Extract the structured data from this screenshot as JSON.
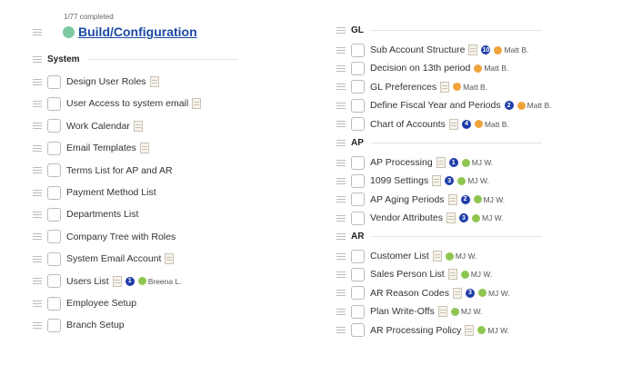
{
  "header": {
    "progress": "1/77 completed",
    "title": "Build/Configuration"
  },
  "left": {
    "section": "System",
    "items": [
      {
        "label": "Design User Roles",
        "doc": true
      },
      {
        "label": "User Access to system email",
        "doc": true
      },
      {
        "label": "Work Calendar",
        "doc": true
      },
      {
        "label": "Email Templates",
        "doc": true
      },
      {
        "label": "Terms List for AP and AR",
        "doc": false
      },
      {
        "label": "Payment Method List",
        "doc": false
      },
      {
        "label": "Departments List",
        "doc": false
      },
      {
        "label": "Company Tree with Roles",
        "doc": false
      },
      {
        "label": "System Email Account",
        "doc": true
      },
      {
        "label": "Users List",
        "doc": true,
        "badge": "1",
        "avatar": "green",
        "assignee": "Breena L."
      },
      {
        "label": "Employee Setup",
        "doc": false
      },
      {
        "label": "Branch Setup",
        "doc": false
      }
    ]
  },
  "right": {
    "sections": [
      {
        "name": "GL",
        "items": [
          {
            "label": "Sub Account Structure",
            "doc": true,
            "badge": "10",
            "avatar": "orange",
            "assignee": "Matt B."
          },
          {
            "label": "Decision on 13th period",
            "doc": false,
            "avatar": "orange",
            "assignee": "Matt B."
          },
          {
            "label": "GL Preferences",
            "doc": true,
            "avatar": "orange",
            "assignee": "Matt B."
          },
          {
            "label": "Define Fiscal Year and Periods",
            "doc": false,
            "badge": "2",
            "avatar": "orange",
            "assignee": "Matt B."
          },
          {
            "label": "Chart of Accounts",
            "doc": true,
            "badge": "4",
            "avatar": "orange",
            "assignee": "Matt B."
          }
        ]
      },
      {
        "name": "AP",
        "items": [
          {
            "label": "AP Processing",
            "doc": true,
            "badge": "1",
            "avatar": "green",
            "assignee": "MJ W."
          },
          {
            "label": "1099 Settings",
            "doc": true,
            "badge": "3",
            "avatar": "green",
            "assignee": "MJ W."
          },
          {
            "label": "AP Aging Periods",
            "doc": true,
            "badge": "2",
            "avatar": "green",
            "assignee": "MJ W."
          },
          {
            "label": "Vendor Attributes",
            "doc": true,
            "badge": "3",
            "avatar": "green",
            "assignee": "MJ W."
          }
        ]
      },
      {
        "name": "AR",
        "items": [
          {
            "label": "Customer List",
            "doc": true,
            "avatar": "green",
            "assignee": "MJ W."
          },
          {
            "label": "Sales Person List",
            "doc": true,
            "avatar": "green",
            "assignee": "MJ W."
          },
          {
            "label": "AR Reason Codes",
            "doc": true,
            "badge": "3",
            "avatar": "green",
            "assignee": "MJ W."
          },
          {
            "label": "Plan Write-Offs",
            "doc": true,
            "avatar": "green",
            "assignee": "MJ W."
          },
          {
            "label": "AR Processing Policy",
            "doc": true,
            "avatar": "green",
            "assignee": "MJ W."
          }
        ]
      }
    ]
  }
}
